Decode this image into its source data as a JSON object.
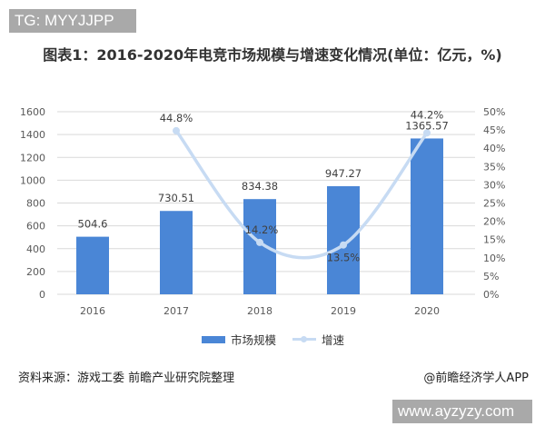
{
  "watermark_top": "TG: MYYJJPP",
  "watermark_bottom": "www.ayzyzy.com",
  "chart_data": {
    "type": "bar+line",
    "title": "图表1：2016-2020年电竞市场规模与增速变化情况(单位：亿元，%)",
    "categories": [
      "2016",
      "2017",
      "2018",
      "2019",
      "2020"
    ],
    "series": [
      {
        "name": "市场规模",
        "type": "bar",
        "axis": "left",
        "values": [
          504.6,
          730.51,
          834.38,
          947.27,
          1365.57
        ],
        "labels": [
          "504.6",
          "730.51",
          "834.38",
          "947.27",
          "1365.57"
        ],
        "color": "#4a86d6"
      },
      {
        "name": "增速",
        "type": "line",
        "axis": "right",
        "smooth": true,
        "values": [
          null,
          44.8,
          14.2,
          13.5,
          44.2
        ],
        "labels": [
          "",
          "44.8%",
          "14.2%",
          "13.5%",
          "44.2%"
        ],
        "color": "#c7dbf3"
      }
    ],
    "y_left": {
      "ylim": [
        0,
        1600
      ],
      "ticks": [
        "0",
        "200",
        "400",
        "600",
        "800",
        "1000",
        "1200",
        "1400",
        "1600"
      ]
    },
    "y_right": {
      "ylim": [
        0,
        50
      ],
      "ticks": [
        "0%",
        "5%",
        "10%",
        "15%",
        "20%",
        "25%",
        "30%",
        "35%",
        "40%",
        "45%",
        "50%"
      ]
    },
    "grid": true,
    "legend_position": "bottom"
  },
  "legend": {
    "bar": "市场规模",
    "line": "增速"
  },
  "footer": {
    "source": "资料来源：游戏工委 前瞻产业研究院整理",
    "credit": "@前瞻经济学人APP"
  }
}
